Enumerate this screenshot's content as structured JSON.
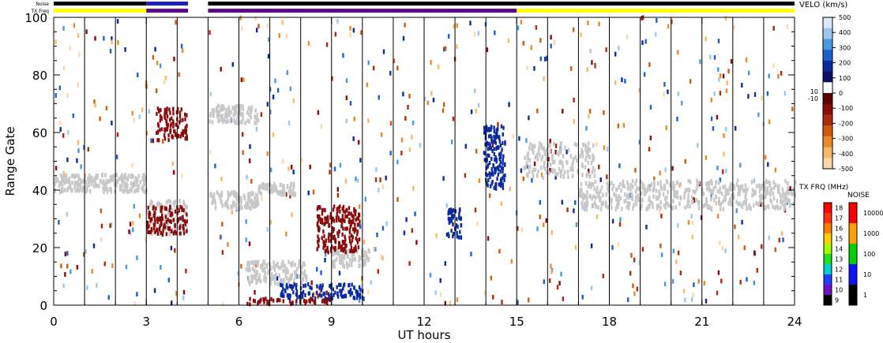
{
  "chart_data": {
    "type": "scatter",
    "xlabel": "UT hours",
    "ylabel": "Range Gate",
    "xlim": [
      0,
      24
    ],
    "ylim": [
      0,
      100
    ],
    "x_ticks": [
      "0",
      "3",
      "6",
      "9",
      "12",
      "15",
      "18",
      "21",
      "24"
    ],
    "y_ticks": [
      "0",
      "20",
      "40",
      "60",
      "80",
      "100"
    ],
    "grid_lines_x": [
      1,
      2,
      3,
      4,
      5,
      6,
      7,
      8,
      9,
      10,
      11,
      12,
      13,
      14,
      15,
      16,
      17,
      18,
      19,
      20,
      21,
      22,
      23
    ],
    "data_gaps": [
      [
        4.35,
        5.0
      ]
    ],
    "status_bars": {
      "noise_label": "Noise",
      "txfreq_label": "TX Freq",
      "segments": [
        {
          "start": 0.0,
          "end": 3.0,
          "noise_color": "#000000",
          "txfreq_color": "#ffff00"
        },
        {
          "start": 3.0,
          "end": 4.35,
          "noise_color": "#2020c0",
          "txfreq_color": "#5a0a8a"
        },
        {
          "start": 5.0,
          "end": 15.0,
          "noise_color": "#000000",
          "txfreq_color": "#5a0a8a"
        },
        {
          "start": 15.0,
          "end": 24.0,
          "noise_color": "#000000",
          "txfreq_color": "#ffff00"
        }
      ]
    },
    "velocity_scale": {
      "title": "VELO (km/s)",
      "ticks": [
        "500",
        "400",
        "300",
        "200",
        "100",
        "0",
        "-100",
        "-200",
        "-300",
        "-400",
        "-500"
      ],
      "side_labels": [
        "10",
        "-10"
      ],
      "colors": [
        "#dce8f8",
        "#9cc8f0",
        "#4a9ae0",
        "#1a60d0",
        "#0a2aa0",
        "#101060",
        "#ffffff",
        "#5a0000",
        "#8a0a0a",
        "#b02a0a",
        "#d05a10",
        "#e88a2a",
        "#f8b868",
        "#fcd8a8"
      ]
    },
    "txfreq_scale": {
      "title": "TX FRQ (MHz)",
      "ticks": [
        "18",
        "17",
        "16",
        "15",
        "14",
        "13",
        "12",
        "11",
        "10",
        "9"
      ],
      "colors": [
        "#ff0000",
        "#ff3010",
        "#ff8000",
        "#ffd000",
        "#a0ff00",
        "#20e020",
        "#00d0d0",
        "#2040ff",
        "#7010c0",
        "#000000"
      ]
    },
    "noise_scale": {
      "title": "NOISE",
      "ticks": [
        "10000",
        "1000",
        "100",
        "10",
        "1"
      ],
      "colors": [
        "#ff0000",
        "#ffa000",
        "#00d000",
        "#1010ff",
        "#000000"
      ]
    },
    "ground_scatter_color": "#c8c8c8",
    "series": [
      {
        "name": "",
        "kind": "ground-band",
        "x0": 0.0,
        "x1": 3.0,
        "y_center": 42,
        "half_width": 3,
        "color": "#c8c8c8"
      },
      {
        "name": "",
        "kind": "ground-band",
        "x0": 5.0,
        "x1": 6.6,
        "y_center": 36,
        "half_width": 3,
        "color": "#c8c8c8"
      },
      {
        "name": "",
        "kind": "ground-band",
        "x0": 6.6,
        "x1": 7.8,
        "y_center": 40,
        "half_width": 2,
        "color": "#c8c8c8"
      },
      {
        "name": "",
        "kind": "ground-band",
        "x0": 5.0,
        "x1": 6.6,
        "y_center": 66,
        "half_width": 3,
        "color": "#c8c8c8"
      },
      {
        "name": "",
        "kind": "ground-band",
        "x0": 6.2,
        "x1": 8.2,
        "y_center": 11,
        "half_width": 4,
        "color": "#c8c8c8"
      },
      {
        "name": "",
        "kind": "ground-band",
        "x0": 3.0,
        "x1": 4.3,
        "y_center": 30,
        "half_width": 6,
        "color": "#c8c8c8"
      },
      {
        "name": "",
        "kind": "ground-band",
        "x0": 15.2,
        "x1": 17.5,
        "y_center": 50,
        "half_width": 6,
        "color": "#c8c8c8"
      },
      {
        "name": "",
        "kind": "ground-band",
        "x0": 17.0,
        "x1": 24.0,
        "y_center": 38,
        "half_width": 5,
        "color": "#c8c8c8"
      },
      {
        "name": "",
        "kind": "ground-band",
        "x0": 9.0,
        "x1": 10.2,
        "y_center": 16,
        "half_width": 3,
        "color": "#c8c8c8"
      },
      {
        "name": "",
        "kind": "velocity-patch",
        "x0": 8.5,
        "x1": 9.9,
        "y0": 18,
        "y1": 34,
        "color": "#8a0a0a"
      },
      {
        "name": "",
        "kind": "velocity-patch",
        "x0": 3.3,
        "x1": 4.3,
        "y0": 57,
        "y1": 68,
        "color": "#8a0a0a"
      },
      {
        "name": "",
        "kind": "velocity-patch",
        "x0": 3.0,
        "x1": 4.3,
        "y0": 24,
        "y1": 34,
        "color": "#8a0a0a"
      },
      {
        "name": "",
        "kind": "velocity-patch",
        "x0": 6.0,
        "x1": 9.0,
        "y0": 0,
        "y1": 2,
        "color": "#8a0a0a"
      },
      {
        "name": "",
        "kind": "velocity-patch",
        "x0": 7.3,
        "x1": 10.0,
        "y0": 2,
        "y1": 7,
        "color": "#0a2aa0"
      },
      {
        "name": "",
        "kind": "velocity-patch",
        "x0": 12.7,
        "x1": 13.2,
        "y0": 23,
        "y1": 33,
        "color": "#0a2aa0"
      },
      {
        "name": "",
        "kind": "velocity-patch",
        "x0": 13.9,
        "x1": 14.6,
        "y0": 40,
        "y1": 62,
        "color": "#0a2aa0"
      }
    ]
  }
}
